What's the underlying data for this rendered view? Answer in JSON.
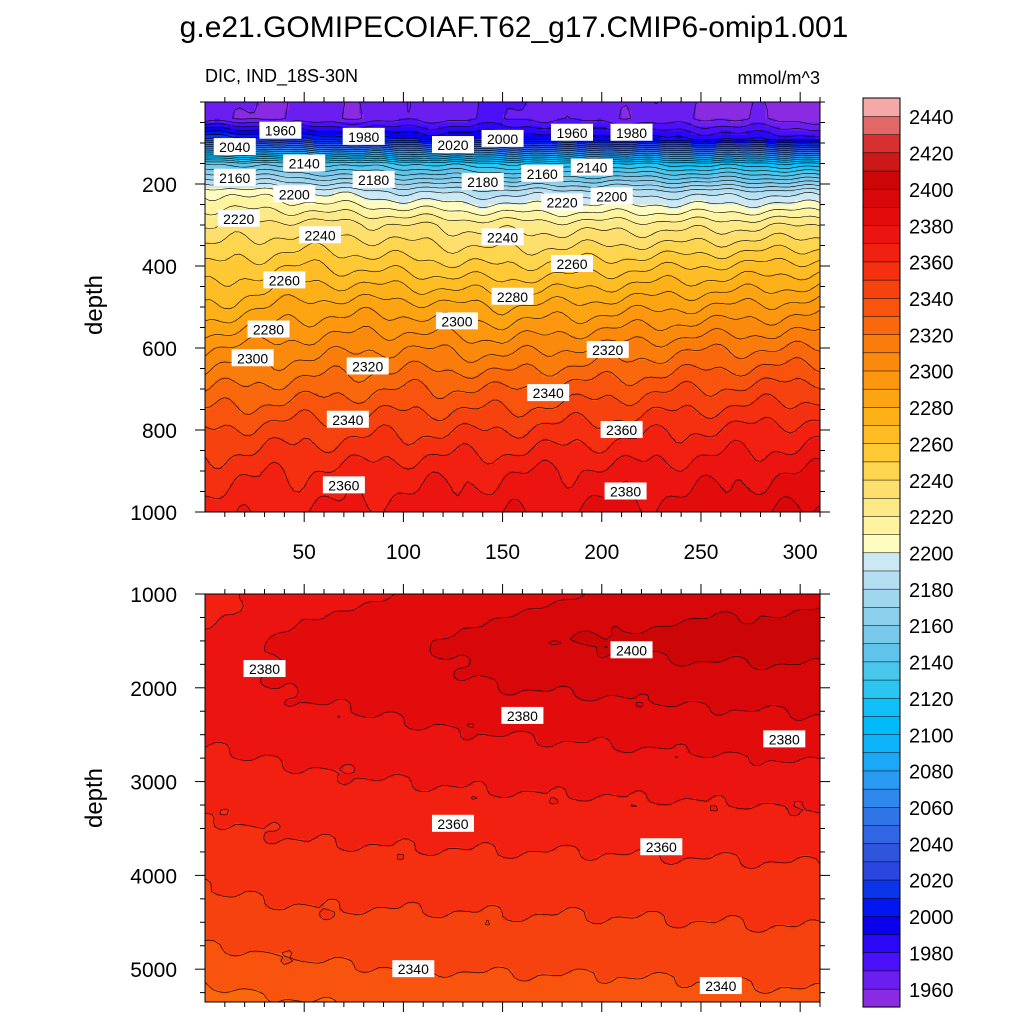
{
  "title": "g.e21.GOMIPECOIAF.T62_g17.CMIP6-omip1.001",
  "left_label": "DIC, IND_18S-30N",
  "units": "mmol/m^3",
  "colors": {
    "background": "#ffffff",
    "contour_line": "#000000"
  },
  "chart_data": [
    {
      "type": "contour",
      "name": "upper panel (0-1000 m)",
      "xlabel": "",
      "ylabel": "depth",
      "xlim": [
        0,
        310
      ],
      "ylim": [
        0,
        1000
      ],
      "y_inverted": true,
      "x_ticks": [
        50,
        100,
        150,
        200,
        250,
        300
      ],
      "y_ticks": [
        200,
        400,
        600,
        800,
        1000
      ],
      "contour_interval": 10,
      "profiles_x": [
        0,
        50,
        100,
        150,
        200,
        250,
        310
      ],
      "profiles": [
        {
          "depth": [
            40,
            90,
            150,
            220,
            300,
            400,
            500,
            600,
            700,
            800,
            900,
            1000
          ],
          "dic": [
            1960,
            2020,
            2150,
            2210,
            2230,
            2250,
            2270,
            2300,
            2320,
            2340,
            2355,
            2365
          ]
        },
        {
          "depth": [
            40,
            90,
            150,
            220,
            300,
            400,
            500,
            600,
            700,
            800,
            900,
            1000
          ],
          "dic": [
            1960,
            2010,
            2140,
            2200,
            2235,
            2260,
            2285,
            2305,
            2325,
            2345,
            2360,
            2370
          ]
        },
        {
          "depth": [
            40,
            90,
            150,
            220,
            300,
            400,
            500,
            600,
            700,
            800,
            900,
            1000
          ],
          "dic": [
            1965,
            2000,
            2130,
            2190,
            2230,
            2255,
            2285,
            2310,
            2330,
            2348,
            2365,
            2375
          ]
        },
        {
          "depth": [
            40,
            90,
            150,
            220,
            300,
            400,
            500,
            600,
            700,
            800,
            900,
            1000
          ],
          "dic": [
            1970,
            2000,
            2120,
            2185,
            2225,
            2250,
            2280,
            2305,
            2330,
            2350,
            2368,
            2378
          ]
        },
        {
          "depth": [
            40,
            90,
            150,
            220,
            300,
            400,
            500,
            600,
            700,
            800,
            900,
            1000
          ],
          "dic": [
            1965,
            1995,
            2120,
            2185,
            2225,
            2255,
            2285,
            2312,
            2335,
            2355,
            2372,
            2382
          ]
        },
        {
          "depth": [
            40,
            90,
            150,
            220,
            300,
            400,
            500,
            600,
            700,
            800,
            900,
            1000
          ],
          "dic": [
            1960,
            1990,
            2115,
            2185,
            2225,
            2260,
            2290,
            2318,
            2340,
            2360,
            2375,
            2385
          ]
        },
        {
          "depth": [
            40,
            90,
            150,
            220,
            300,
            400,
            500,
            600,
            700,
            800,
            900,
            1000
          ],
          "dic": [
            1955,
            1985,
            2110,
            2185,
            2230,
            2265,
            2295,
            2320,
            2345,
            2365,
            2380,
            2392
          ]
        }
      ],
      "line_labels": [
        {
          "text": "1960",
          "x": 38,
          "depth": 70
        },
        {
          "text": "1980",
          "x": 80,
          "depth": 85
        },
        {
          "text": "2000",
          "x": 150,
          "depth": 90
        },
        {
          "text": "2020",
          "x": 125,
          "depth": 105
        },
        {
          "text": "1960",
          "x": 185,
          "depth": 75
        },
        {
          "text": "1980",
          "x": 215,
          "depth": 75
        },
        {
          "text": "2040",
          "x": 15,
          "depth": 110
        },
        {
          "text": "2140",
          "x": 50,
          "depth": 150
        },
        {
          "text": "2140",
          "x": 195,
          "depth": 160
        },
        {
          "text": "2160",
          "x": 15,
          "depth": 185
        },
        {
          "text": "2160",
          "x": 170,
          "depth": 175
        },
        {
          "text": "2180",
          "x": 85,
          "depth": 190
        },
        {
          "text": "2180",
          "x": 140,
          "depth": 195
        },
        {
          "text": "2200",
          "x": 45,
          "depth": 225
        },
        {
          "text": "2200",
          "x": 205,
          "depth": 230
        },
        {
          "text": "2220",
          "x": 17,
          "depth": 285
        },
        {
          "text": "2220",
          "x": 180,
          "depth": 245
        },
        {
          "text": "2240",
          "x": 58,
          "depth": 325
        },
        {
          "text": "2240",
          "x": 150,
          "depth": 330
        },
        {
          "text": "2260",
          "x": 40,
          "depth": 435
        },
        {
          "text": "2260",
          "x": 185,
          "depth": 395
        },
        {
          "text": "2280",
          "x": 32,
          "depth": 555
        },
        {
          "text": "2280",
          "x": 155,
          "depth": 475
        },
        {
          "text": "2300",
          "x": 24,
          "depth": 625
        },
        {
          "text": "2300",
          "x": 127,
          "depth": 535
        },
        {
          "text": "2320",
          "x": 82,
          "depth": 645
        },
        {
          "text": "2320",
          "x": 203,
          "depth": 605
        },
        {
          "text": "2340",
          "x": 72,
          "depth": 775
        },
        {
          "text": "2340",
          "x": 173,
          "depth": 710
        },
        {
          "text": "2360",
          "x": 70,
          "depth": 935
        },
        {
          "text": "2360",
          "x": 210,
          "depth": 800
        },
        {
          "text": "2380",
          "x": 212,
          "depth": 950
        }
      ]
    },
    {
      "type": "contour",
      "name": "lower panel (1000-5300 m)",
      "xlabel": "",
      "ylabel": "depth",
      "xlim": [
        0,
        310
      ],
      "ylim": [
        1000,
        5350
      ],
      "y_inverted": true,
      "y_ticks": [
        1000,
        2000,
        3000,
        4000,
        5000
      ],
      "contour_interval": 10,
      "profiles_x": [
        0,
        50,
        100,
        150,
        200,
        250,
        310
      ],
      "profiles": [
        {
          "depth": [
            1000,
            1500,
            2000,
            2500,
            3000,
            3500,
            4000,
            4500,
            5000,
            5350
          ],
          "dic": [
            2365,
            2372,
            2375,
            2372,
            2365,
            2358,
            2352,
            2345,
            2335,
            2325
          ]
        },
        {
          "depth": [
            1000,
            1500,
            2000,
            2500,
            3000,
            3500,
            4000,
            4500,
            5000,
            5350
          ],
          "dic": [
            2375,
            2385,
            2382,
            2375,
            2368,
            2362,
            2355,
            2348,
            2338,
            2330
          ]
        },
        {
          "depth": [
            1000,
            1500,
            2000,
            2500,
            3000,
            3500,
            4000,
            4500,
            5000,
            5350
          ],
          "dic": [
            2380,
            2388,
            2385,
            2378,
            2370,
            2363,
            2356,
            2348,
            2340,
            2332
          ]
        },
        {
          "depth": [
            1000,
            1500,
            2000,
            2500,
            3000,
            3500,
            4000,
            4500,
            5000,
            5350
          ],
          "dic": [
            2385,
            2396,
            2390,
            2380,
            2372,
            2364,
            2356,
            2349,
            2341,
            2334
          ]
        },
        {
          "depth": [
            1000,
            1500,
            2000,
            2500,
            3000,
            3500,
            4000,
            4500,
            5000,
            5350
          ],
          "dic": [
            2390,
            2402,
            2392,
            2382,
            2373,
            2364,
            2356,
            2349,
            2341,
            2335
          ]
        },
        {
          "depth": [
            1000,
            1500,
            2000,
            2500,
            3000,
            3500,
            4000,
            4500,
            5000,
            5350
          ],
          "dic": [
            2394,
            2405,
            2394,
            2384,
            2374,
            2365,
            2357,
            2350,
            2342,
            2336
          ]
        },
        {
          "depth": [
            1000,
            1500,
            2000,
            2500,
            3000,
            3500,
            4000,
            4500,
            5000,
            5350
          ],
          "dic": [
            2398,
            2405,
            2395,
            2386,
            2376,
            2366,
            2358,
            2351,
            2344,
            2338
          ]
        }
      ],
      "line_labels": [
        {
          "text": "2380",
          "x": 30,
          "depth": 1800
        },
        {
          "text": "2400",
          "x": 215,
          "depth": 1600
        },
        {
          "text": "2380",
          "x": 160,
          "depth": 2300
        },
        {
          "text": "2380",
          "x": 292,
          "depth": 2550
        },
        {
          "text": "2360",
          "x": 125,
          "depth": 3450
        },
        {
          "text": "2360",
          "x": 230,
          "depth": 3700
        },
        {
          "text": "2340",
          "x": 105,
          "depth": 5000
        },
        {
          "text": "2340",
          "x": 260,
          "depth": 5180
        }
      ]
    }
  ],
  "colorbar": {
    "levels": [
      1950,
      1960,
      1970,
      1980,
      1990,
      2000,
      2010,
      2020,
      2030,
      2040,
      2050,
      2060,
      2070,
      2080,
      2090,
      2100,
      2110,
      2120,
      2130,
      2140,
      2150,
      2160,
      2170,
      2180,
      2190,
      2200,
      2210,
      2220,
      2230,
      2240,
      2250,
      2260,
      2270,
      2280,
      2290,
      2300,
      2310,
      2320,
      2330,
      2340,
      2350,
      2360,
      2370,
      2380,
      2390,
      2400,
      2410,
      2420,
      2430,
      2440,
      2450
    ],
    "colors": [
      "#8a2be2",
      "#6a1ef0",
      "#4b10f8",
      "#2a08f6",
      "#0a00ee",
      "#0018ef",
      "#0a35e8",
      "#2a45e0",
      "#2f55dd",
      "#3265e2",
      "#3075e6",
      "#2e88ee",
      "#2a9af2",
      "#1aa8f7",
      "#0eb4fa",
      "#00bafc",
      "#10bff7",
      "#2cc4f0",
      "#48c6ec",
      "#60c4ea",
      "#78c8ea",
      "#8ccfec",
      "#a0d6ee",
      "#b4dff2",
      "#cce8f5",
      "#fefcc0",
      "#fef4a0",
      "#fee987",
      "#fedf6e",
      "#fed54e",
      "#fec934",
      "#febd24",
      "#fdb119",
      "#fca412",
      "#fc970f",
      "#fb8a0c",
      "#fa7c0b",
      "#f9680c",
      "#f8540e",
      "#f6420f",
      "#f53010",
      "#f22010",
      "#ec1410",
      "#e20c0c",
      "#d8080a",
      "#cc0606",
      "#cc1818",
      "#d83030",
      "#e26868",
      "#f5a8a8"
    ],
    "tick_labels": [
      "1960",
      "1980",
      "2000",
      "2020",
      "2040",
      "2060",
      "2080",
      "2100",
      "2120",
      "2140",
      "2160",
      "2180",
      "2200",
      "2220",
      "2240",
      "2260",
      "2280",
      "2300",
      "2320",
      "2340",
      "2360",
      "2380",
      "2400",
      "2420",
      "2440"
    ]
  }
}
